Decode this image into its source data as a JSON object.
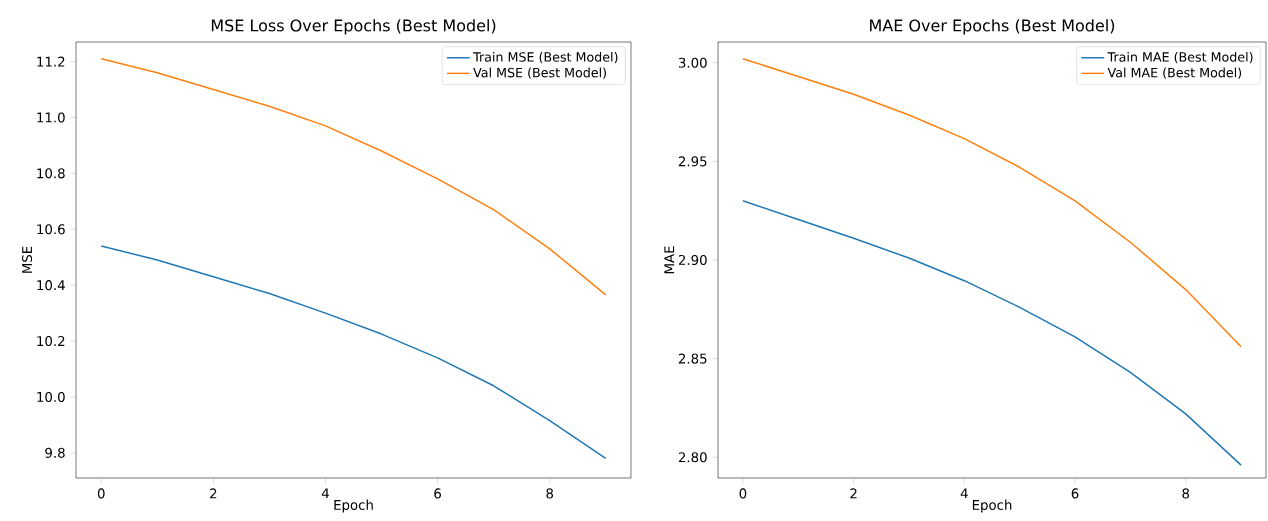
{
  "chart_data": [
    {
      "type": "line",
      "title": "MSE Loss Over Epochs (Best Model)",
      "xlabel": "Epoch",
      "ylabel": "MSE",
      "x": [
        0,
        1,
        2,
        3,
        4,
        5,
        6,
        7,
        8,
        9
      ],
      "series": [
        {
          "name": "Train MSE (Best Model)",
          "color": "#1f77b4",
          "values": [
            10.54,
            10.49,
            10.43,
            10.37,
            10.3,
            10.225,
            10.14,
            10.04,
            9.915,
            9.78
          ]
        },
        {
          "name": "Val MSE (Best Model)",
          "color": "#ff7f0e",
          "values": [
            11.21,
            11.16,
            11.1,
            11.04,
            10.97,
            10.88,
            10.78,
            10.67,
            10.53,
            10.365
          ]
        }
      ],
      "xlim": [
        -0.45,
        9.45
      ],
      "ylim": [
        9.71,
        11.27
      ],
      "xticks": [
        0,
        2,
        4,
        6,
        8
      ],
      "yticks": [
        9.8,
        {
          "value": 10.0,
          "label": "10.0"
        },
        10.2,
        10.4,
        10.6,
        10.8,
        {
          "value": 11.0,
          "label": "11.0"
        },
        11.2
      ],
      "grid": false,
      "legend": "top right",
      "marker": "none",
      "line_style": "solid"
    },
    {
      "type": "line",
      "title": "MAE Over Epochs (Best Model)",
      "xlabel": "Epoch",
      "ylabel": "MAE",
      "x": [
        0,
        1,
        2,
        3,
        4,
        5,
        6,
        7,
        8,
        9
      ],
      "series": [
        {
          "name": "Train MAE (Best Model)",
          "color": "#1f77b4",
          "values": [
            2.93,
            2.9205,
            2.911,
            2.901,
            2.8895,
            2.876,
            2.861,
            2.843,
            2.822,
            2.796
          ]
        },
        {
          "name": "Val MAE (Best Model)",
          "color": "#ff7f0e",
          "values": [
            3.002,
            2.993,
            2.984,
            2.9735,
            2.9615,
            2.947,
            2.93,
            2.909,
            2.885,
            2.856
          ]
        }
      ],
      "xlim": [
        -0.45,
        9.45
      ],
      "ylim": [
        2.7895,
        3.0105
      ],
      "xticks": [
        0,
        2,
        4,
        6,
        8
      ],
      "yticks": [
        {
          "value": 2.8,
          "label": "2.80"
        },
        2.85,
        {
          "value": 2.9,
          "label": "2.90"
        },
        2.95,
        {
          "value": 3.0,
          "label": "3.00"
        }
      ],
      "grid": false,
      "legend": "top right",
      "marker": "none",
      "line_style": "solid"
    }
  ]
}
